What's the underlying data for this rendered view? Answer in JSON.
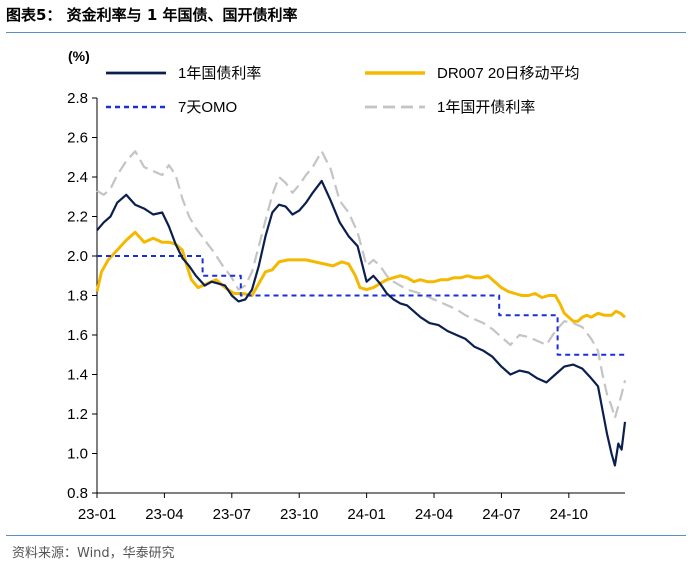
{
  "header": {
    "figure_title": "图表5：   资金利率与 1 年国债、国开债利率"
  },
  "footer": {
    "source": "资料来源：Wind，华泰研究"
  },
  "chart_data": {
    "type": "line",
    "title": "",
    "ylabel": "(%)",
    "xlabel": "",
    "ylim": [
      0.8,
      2.8
    ],
    "yticks": [
      "0.8",
      "1.0",
      "1.2",
      "1.4",
      "1.6",
      "1.8",
      "2.0",
      "2.2",
      "2.4",
      "2.6",
      "2.8"
    ],
    "xlim": [
      0,
      23.5
    ],
    "xticks": [
      {
        "label": "23-01",
        "pos": 0
      },
      {
        "label": "23-04",
        "pos": 3
      },
      {
        "label": "23-07",
        "pos": 6
      },
      {
        "label": "23-10",
        "pos": 9
      },
      {
        "label": "24-01",
        "pos": 12
      },
      {
        "label": "24-04",
        "pos": 15
      },
      {
        "label": "24-07",
        "pos": 18
      },
      {
        "label": "24-10",
        "pos": 21
      }
    ],
    "grid": false,
    "legend_position": "top",
    "series": [
      {
        "name": "1年国债利率",
        "color": "#0b1f4f",
        "dash": "",
        "width": 2.2,
        "points": [
          [
            0,
            2.13
          ],
          [
            0.3,
            2.17
          ],
          [
            0.6,
            2.2
          ],
          [
            0.9,
            2.27
          ],
          [
            1.3,
            2.31
          ],
          [
            1.7,
            2.26
          ],
          [
            2.1,
            2.24
          ],
          [
            2.5,
            2.21
          ],
          [
            2.9,
            2.22
          ],
          [
            3.2,
            2.15
          ],
          [
            3.5,
            2.06
          ],
          [
            3.8,
            1.99
          ],
          [
            4.1,
            1.95
          ],
          [
            4.4,
            1.9
          ],
          [
            4.8,
            1.85
          ],
          [
            5.1,
            1.87
          ],
          [
            5.4,
            1.86
          ],
          [
            5.7,
            1.85
          ],
          [
            6.0,
            1.8
          ],
          [
            6.3,
            1.77
          ],
          [
            6.6,
            1.78
          ],
          [
            6.9,
            1.83
          ],
          [
            7.2,
            1.95
          ],
          [
            7.5,
            2.1
          ],
          [
            7.8,
            2.22
          ],
          [
            8.1,
            2.26
          ],
          [
            8.4,
            2.25
          ],
          [
            8.7,
            2.21
          ],
          [
            9.0,
            2.23
          ],
          [
            9.3,
            2.27
          ],
          [
            9.6,
            2.32
          ],
          [
            10.0,
            2.38
          ],
          [
            10.4,
            2.28
          ],
          [
            10.8,
            2.17
          ],
          [
            11.2,
            2.1
          ],
          [
            11.6,
            2.05
          ],
          [
            12.0,
            1.87
          ],
          [
            12.3,
            1.9
          ],
          [
            12.6,
            1.86
          ],
          [
            12.9,
            1.81
          ],
          [
            13.2,
            1.78
          ],
          [
            13.5,
            1.76
          ],
          [
            13.8,
            1.75
          ],
          [
            14.1,
            1.72
          ],
          [
            14.4,
            1.69
          ],
          [
            14.8,
            1.66
          ],
          [
            15.2,
            1.65
          ],
          [
            15.6,
            1.62
          ],
          [
            16.0,
            1.6
          ],
          [
            16.4,
            1.58
          ],
          [
            16.8,
            1.54
          ],
          [
            17.2,
            1.52
          ],
          [
            17.6,
            1.49
          ],
          [
            18.0,
            1.44
          ],
          [
            18.4,
            1.4
          ],
          [
            18.8,
            1.42
          ],
          [
            19.2,
            1.41
          ],
          [
            19.6,
            1.38
          ],
          [
            20.0,
            1.36
          ],
          [
            20.4,
            1.4
          ],
          [
            20.8,
            1.44
          ],
          [
            21.2,
            1.45
          ],
          [
            21.6,
            1.43
          ],
          [
            22.0,
            1.38
          ],
          [
            22.3,
            1.34
          ],
          [
            22.5,
            1.22
          ],
          [
            22.7,
            1.1
          ],
          [
            22.9,
            1.0
          ],
          [
            23.05,
            0.94
          ],
          [
            23.2,
            1.05
          ],
          [
            23.35,
            1.02
          ],
          [
            23.5,
            1.16
          ]
        ]
      },
      {
        "name": "DR007 20日移动平均",
        "color": "#f5b800",
        "dash": "",
        "width": 3,
        "points": [
          [
            0,
            1.82
          ],
          [
            0.2,
            1.92
          ],
          [
            0.5,
            1.98
          ],
          [
            0.9,
            2.03
          ],
          [
            1.3,
            2.08
          ],
          [
            1.7,
            2.12
          ],
          [
            2.1,
            2.07
          ],
          [
            2.5,
            2.09
          ],
          [
            2.9,
            2.07
          ],
          [
            3.2,
            2.07
          ],
          [
            3.5,
            2.06
          ],
          [
            3.8,
            2.03
          ],
          [
            4.0,
            1.95
          ],
          [
            4.2,
            1.88
          ],
          [
            4.5,
            1.84
          ],
          [
            4.9,
            1.86
          ],
          [
            5.3,
            1.88
          ],
          [
            5.7,
            1.84
          ],
          [
            6.1,
            1.81
          ],
          [
            6.5,
            1.81
          ],
          [
            6.9,
            1.8
          ],
          [
            7.2,
            1.86
          ],
          [
            7.5,
            1.92
          ],
          [
            7.8,
            1.93
          ],
          [
            8.1,
            1.97
          ],
          [
            8.5,
            1.98
          ],
          [
            8.9,
            1.98
          ],
          [
            9.3,
            1.98
          ],
          [
            9.7,
            1.97
          ],
          [
            10.1,
            1.96
          ],
          [
            10.5,
            1.95
          ],
          [
            10.9,
            1.97
          ],
          [
            11.2,
            1.96
          ],
          [
            11.5,
            1.9
          ],
          [
            11.7,
            1.84
          ],
          [
            12.0,
            1.83
          ],
          [
            12.3,
            1.84
          ],
          [
            12.6,
            1.86
          ],
          [
            12.9,
            1.88
          ],
          [
            13.2,
            1.89
          ],
          [
            13.5,
            1.9
          ],
          [
            13.8,
            1.89
          ],
          [
            14.1,
            1.87
          ],
          [
            14.4,
            1.88
          ],
          [
            14.7,
            1.87
          ],
          [
            15.0,
            1.87
          ],
          [
            15.3,
            1.88
          ],
          [
            15.6,
            1.88
          ],
          [
            15.9,
            1.89
          ],
          [
            16.2,
            1.89
          ],
          [
            16.5,
            1.9
          ],
          [
            16.8,
            1.89
          ],
          [
            17.1,
            1.89
          ],
          [
            17.4,
            1.9
          ],
          [
            17.7,
            1.87
          ],
          [
            18.0,
            1.84
          ],
          [
            18.3,
            1.82
          ],
          [
            18.6,
            1.81
          ],
          [
            18.9,
            1.8
          ],
          [
            19.2,
            1.8
          ],
          [
            19.5,
            1.81
          ],
          [
            19.8,
            1.79
          ],
          [
            20.1,
            1.8
          ],
          [
            20.4,
            1.8
          ],
          [
            20.6,
            1.76
          ],
          [
            20.8,
            1.71
          ],
          [
            21.0,
            1.69
          ],
          [
            21.2,
            1.67
          ],
          [
            21.4,
            1.67
          ],
          [
            21.6,
            1.69
          ],
          [
            21.8,
            1.7
          ],
          [
            22.0,
            1.69
          ],
          [
            22.3,
            1.71
          ],
          [
            22.6,
            1.7
          ],
          [
            22.9,
            1.7
          ],
          [
            23.1,
            1.72
          ],
          [
            23.3,
            1.71
          ],
          [
            23.5,
            1.69
          ]
        ]
      },
      {
        "name": "7天OMO",
        "color": "#1a2fd6",
        "dash": "5,4",
        "width": 2,
        "points": [
          [
            0,
            2.0
          ],
          [
            4.7,
            2.0
          ],
          [
            4.7,
            1.9
          ],
          [
            6.4,
            1.9
          ],
          [
            6.4,
            1.8
          ],
          [
            17.9,
            1.8
          ],
          [
            17.9,
            1.7
          ],
          [
            20.5,
            1.7
          ],
          [
            20.5,
            1.5
          ],
          [
            23.5,
            1.5
          ]
        ]
      },
      {
        "name": "1年国开债利率",
        "color": "#c4c4c4",
        "dash": "12,6",
        "width": 2.2,
        "points": [
          [
            0,
            2.33
          ],
          [
            0.3,
            2.31
          ],
          [
            0.6,
            2.34
          ],
          [
            0.9,
            2.41
          ],
          [
            1.3,
            2.48
          ],
          [
            1.7,
            2.53
          ],
          [
            2.1,
            2.45
          ],
          [
            2.5,
            2.43
          ],
          [
            2.9,
            2.41
          ],
          [
            3.2,
            2.46
          ],
          [
            3.5,
            2.41
          ],
          [
            3.8,
            2.29
          ],
          [
            4.1,
            2.2
          ],
          [
            4.4,
            2.14
          ],
          [
            4.8,
            2.08
          ],
          [
            5.2,
            2.02
          ],
          [
            5.6,
            1.95
          ],
          [
            6.0,
            1.89
          ],
          [
            6.3,
            1.83
          ],
          [
            6.6,
            1.85
          ],
          [
            6.9,
            1.92
          ],
          [
            7.2,
            2.05
          ],
          [
            7.5,
            2.18
          ],
          [
            7.8,
            2.31
          ],
          [
            8.1,
            2.4
          ],
          [
            8.4,
            2.37
          ],
          [
            8.7,
            2.32
          ],
          [
            9.0,
            2.36
          ],
          [
            9.3,
            2.41
          ],
          [
            9.6,
            2.45
          ],
          [
            10.0,
            2.53
          ],
          [
            10.4,
            2.44
          ],
          [
            10.8,
            2.28
          ],
          [
            11.2,
            2.22
          ],
          [
            11.6,
            2.12
          ],
          [
            12.0,
            1.95
          ],
          [
            12.3,
            1.98
          ],
          [
            12.6,
            1.95
          ],
          [
            12.9,
            1.9
          ],
          [
            13.2,
            1.87
          ],
          [
            13.5,
            1.85
          ],
          [
            13.8,
            1.83
          ],
          [
            14.1,
            1.82
          ],
          [
            14.4,
            1.81
          ],
          [
            14.8,
            1.79
          ],
          [
            15.2,
            1.77
          ],
          [
            15.6,
            1.75
          ],
          [
            16.0,
            1.73
          ],
          [
            16.4,
            1.7
          ],
          [
            16.8,
            1.68
          ],
          [
            17.2,
            1.66
          ],
          [
            17.6,
            1.63
          ],
          [
            18.0,
            1.59
          ],
          [
            18.4,
            1.55
          ],
          [
            18.8,
            1.6
          ],
          [
            19.2,
            1.59
          ],
          [
            19.6,
            1.57
          ],
          [
            20.0,
            1.55
          ],
          [
            20.4,
            1.62
          ],
          [
            20.8,
            1.67
          ],
          [
            21.2,
            1.66
          ],
          [
            21.6,
            1.64
          ],
          [
            22.0,
            1.58
          ],
          [
            22.3,
            1.52
          ],
          [
            22.5,
            1.4
          ],
          [
            22.7,
            1.3
          ],
          [
            22.9,
            1.24
          ],
          [
            23.05,
            1.18
          ],
          [
            23.2,
            1.24
          ],
          [
            23.35,
            1.3
          ],
          [
            23.5,
            1.37
          ]
        ]
      }
    ]
  }
}
